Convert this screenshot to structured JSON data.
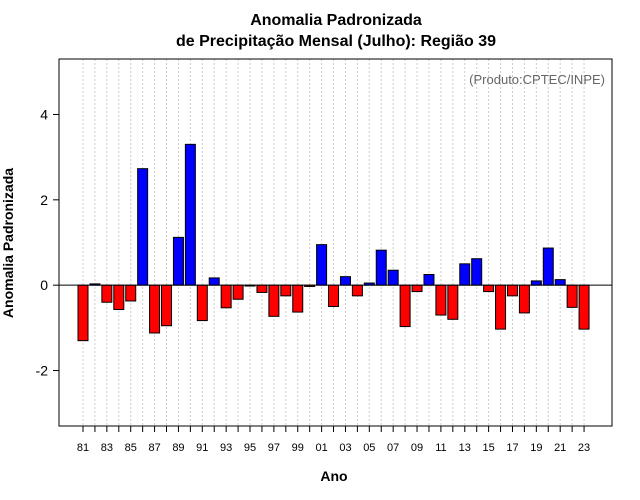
{
  "chart_data": {
    "type": "bar",
    "title_line1": "Anomalia Padronizada",
    "title_line2": "de Precipitação Mensal (Julho): Região 39",
    "xlabel": "Ano",
    "ylabel": "Anomalia Padronizada",
    "credit": "(Produto:CPTEC/INPE)",
    "ylim": [
      -3.3,
      5.3
    ],
    "yticks": [
      -2,
      0,
      2,
      4
    ],
    "ytick_labels": [
      "-2",
      "0",
      "2",
      "4"
    ],
    "xtick_labels": [
      "81",
      "83",
      "85",
      "87",
      "89",
      "91",
      "93",
      "95",
      "97",
      "99",
      "01",
      "03",
      "05",
      "07",
      "09",
      "11",
      "13",
      "15",
      "17",
      "19",
      "21",
      "23"
    ],
    "categories": [
      "1981",
      "1982",
      "1983",
      "1984",
      "1985",
      "1986",
      "1987",
      "1988",
      "1989",
      "1990",
      "1991",
      "1992",
      "1993",
      "1994",
      "1995",
      "1996",
      "1997",
      "1998",
      "1999",
      "2000",
      "2001",
      "2002",
      "2003",
      "2004",
      "2005",
      "2006",
      "2007",
      "2008",
      "2009",
      "2010",
      "2011",
      "2012",
      "2013",
      "2014",
      "2015",
      "2016",
      "2017",
      "2018",
      "2019",
      "2020",
      "2021",
      "2022",
      "2023"
    ],
    "values": [
      -1.3,
      0.03,
      -0.4,
      -0.57,
      -0.37,
      2.73,
      -1.12,
      -0.95,
      1.12,
      3.3,
      -0.83,
      0.17,
      -0.53,
      -0.33,
      -0.02,
      -0.17,
      -0.73,
      -0.25,
      -0.63,
      -0.03,
      0.95,
      -0.5,
      0.2,
      -0.25,
      0.05,
      0.82,
      0.35,
      -0.97,
      -0.15,
      0.25,
      -0.7,
      -0.8,
      0.5,
      0.62,
      -0.15,
      -1.03,
      -0.25,
      -0.65,
      0.1,
      0.87,
      0.13,
      -0.52,
      -1.03
    ],
    "positive_color": "#0000ff",
    "negative_color": "#ff0000",
    "grid": true
  }
}
